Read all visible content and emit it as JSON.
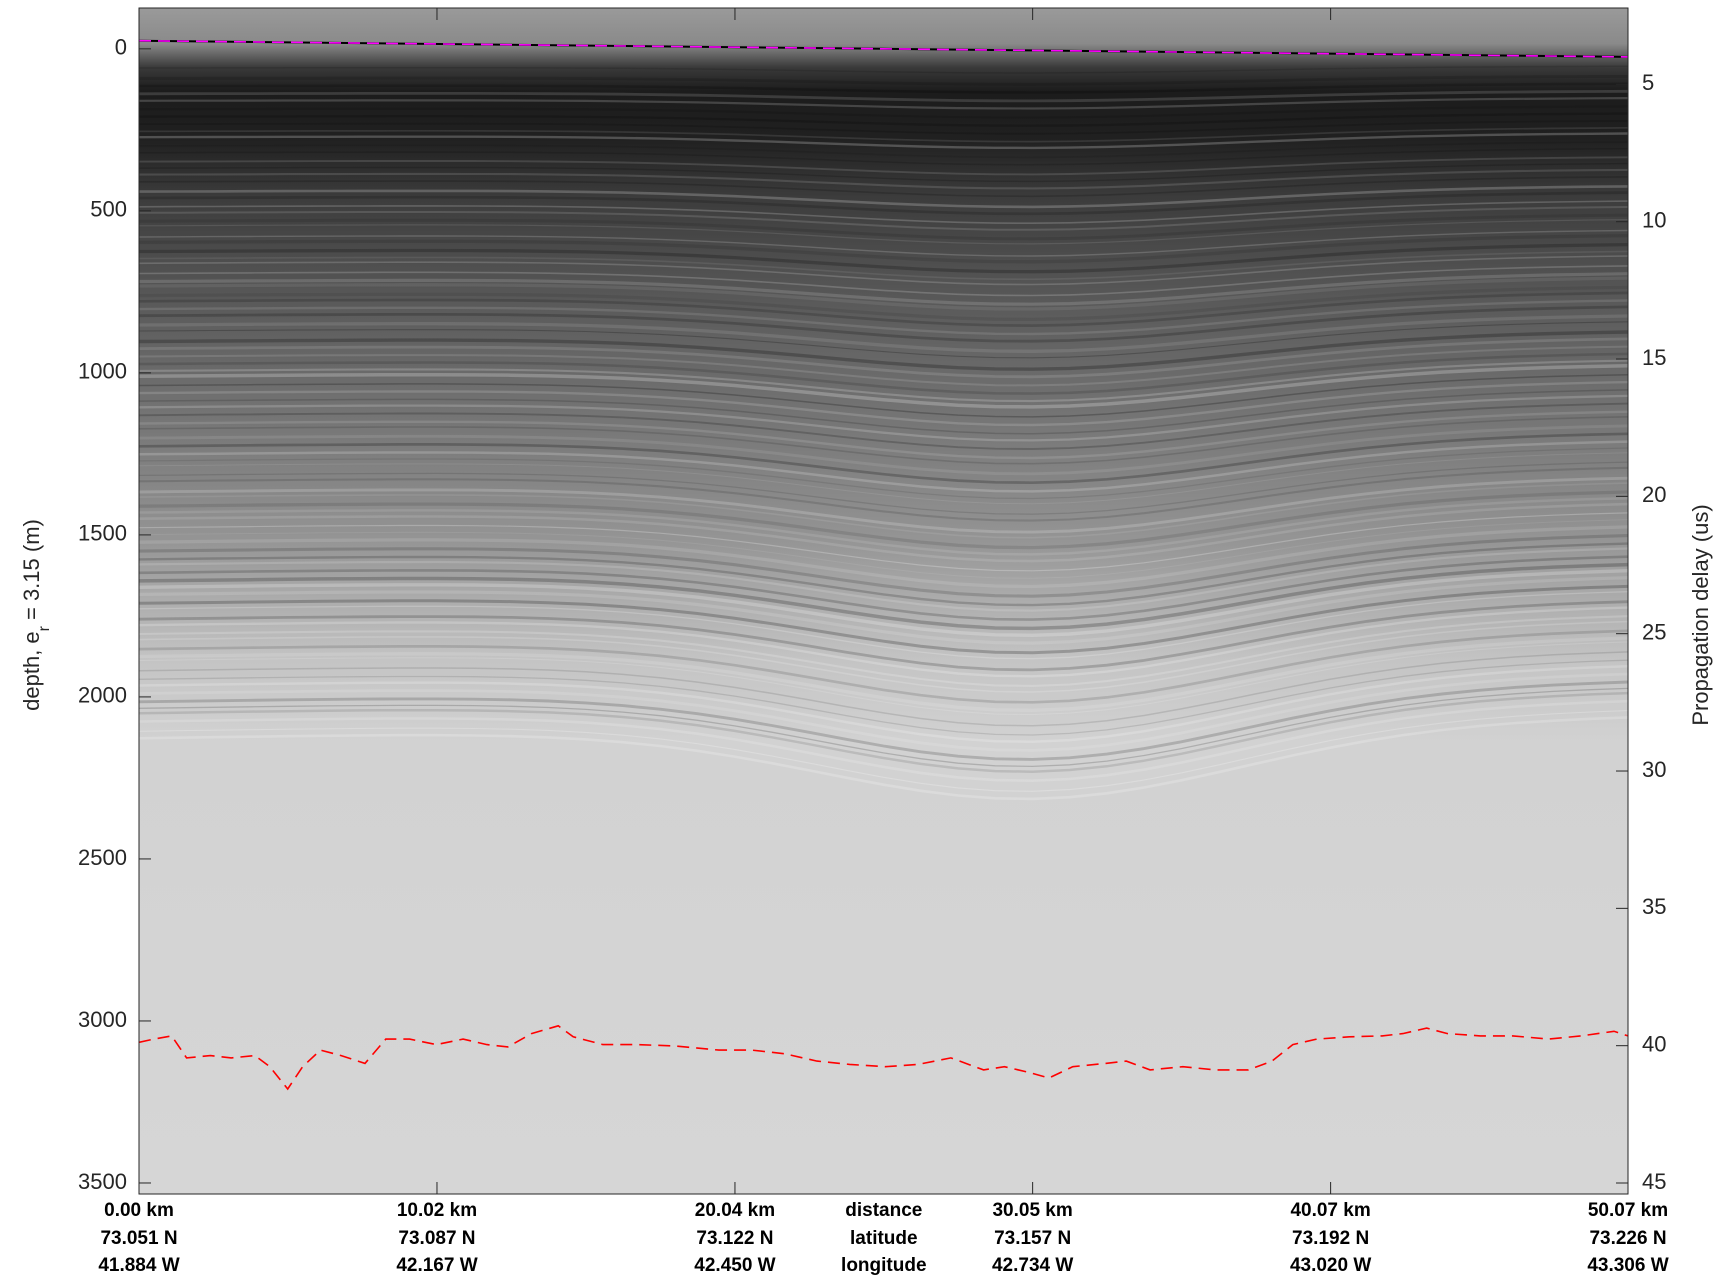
{
  "chart_data": {
    "type": "line",
    "y_label": {
      "text": "depth, e",
      "subscript": "r",
      "suffix": "= 3.15 (m)"
    },
    "y2_label": "Propagation delay (us)",
    "xlim": [
      0,
      50.07
    ],
    "xticks": [
      {
        "value": 0,
        "label": "0.00 km"
      },
      {
        "value": 10.02,
        "label": "10.02 km"
      },
      {
        "value": 20.04,
        "label": "20.04 km"
      },
      {
        "value": 30.05,
        "label": "30.05 km"
      },
      {
        "value": 40.07,
        "label": "40.07 km"
      },
      {
        "value": 50.07,
        "label": "50.07 km"
      }
    ],
    "latitude_labels": [
      "73.051 N",
      "73.087 N",
      "73.122 N",
      "73.157 N",
      "73.192 N",
      "73.226 N"
    ],
    "longitude_labels": [
      "41.884 W",
      "42.167 W",
      "42.450 W",
      "42.734 W",
      "43.020 W",
      "43.306 W"
    ],
    "row_names": [
      "distance",
      "latitude",
      "longitude"
    ],
    "ylim": [
      3534,
      -126
    ],
    "yticks": [
      0,
      500,
      1000,
      1500,
      2000,
      2500,
      3000,
      3500
    ],
    "y2lim": [
      45.4,
      2.22
    ],
    "y2ticks": [
      5,
      10,
      15,
      20,
      25,
      30,
      35,
      40,
      45
    ],
    "series": [
      {
        "color": "#ff00ff",
        "x": [
          0,
          25,
          50.07
        ],
        "y": [
          -25,
          0,
          25
        ]
      },
      {
        "color": "#ff0000",
        "x": [
          0,
          0.5,
          1.1,
          1.6,
          2.4,
          3.1,
          3.9,
          4.4,
          5.0,
          5.5,
          6.1,
          6.8,
          7.6,
          8.3,
          9.1,
          10.0,
          10.9,
          11.7,
          12.4,
          13.2,
          14.1,
          14.6,
          15.6,
          16.7,
          18.0,
          19.5,
          20.6,
          21.7,
          22.8,
          23.9,
          25.1,
          26.2,
          27.3,
          28.4,
          29.1,
          29.9,
          30.6,
          31.4,
          32.5,
          33.2,
          34.0,
          35.1,
          36.2,
          37.3,
          38.1,
          38.8,
          39.6,
          40.7,
          41.8,
          42.5,
          43.3,
          44.0,
          45.1,
          46.2,
          47.4,
          48.5,
          49.6,
          50.07
        ],
        "y": [
          3066,
          3056,
          3046,
          3114,
          3107,
          3114,
          3107,
          3141,
          3210,
          3141,
          3090,
          3107,
          3131,
          3056,
          3056,
          3073,
          3056,
          3073,
          3080,
          3039,
          3015,
          3049,
          3073,
          3073,
          3077,
          3090,
          3090,
          3101,
          3124,
          3134,
          3141,
          3134,
          3114,
          3151,
          3141,
          3158,
          3176,
          3141,
          3131,
          3124,
          3151,
          3141,
          3151,
          3151,
          3124,
          3073,
          3056,
          3049,
          3046,
          3039,
          3022,
          3039,
          3046,
          3046,
          3056,
          3046,
          3032,
          3046
        ]
      }
    ]
  }
}
